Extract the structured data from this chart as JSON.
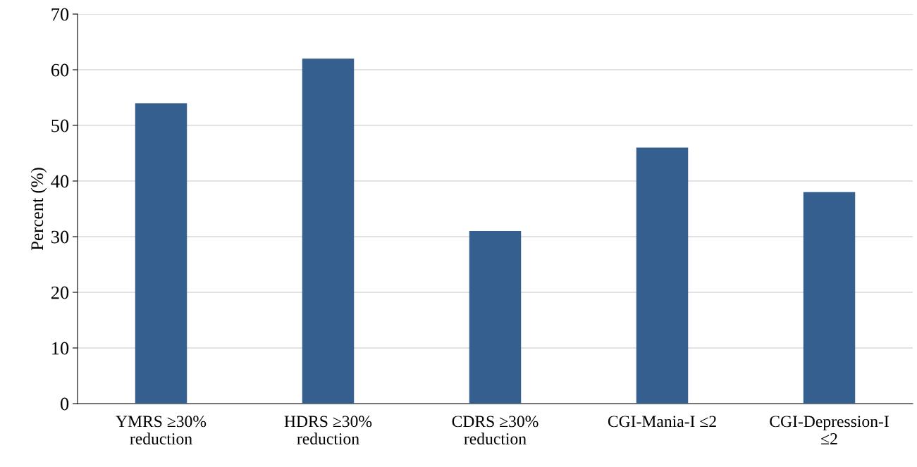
{
  "chart_data": {
    "type": "bar",
    "ylabel": "Percent (%)",
    "categories": [
      "YMRS ≥30%\nreduction",
      "HDRS ≥30%\nreduction",
      "CDRS ≥30%\nreduction",
      "CGI-Mania-I ≤2",
      "CGI-Depression-I\n≤2"
    ],
    "values": [
      54,
      62,
      31,
      46,
      38
    ],
    "color": "#355f8f",
    "ylim": [
      0,
      70
    ],
    "yticks": [
      0,
      10,
      20,
      30,
      40,
      50,
      60,
      70
    ],
    "grid": "y"
  }
}
